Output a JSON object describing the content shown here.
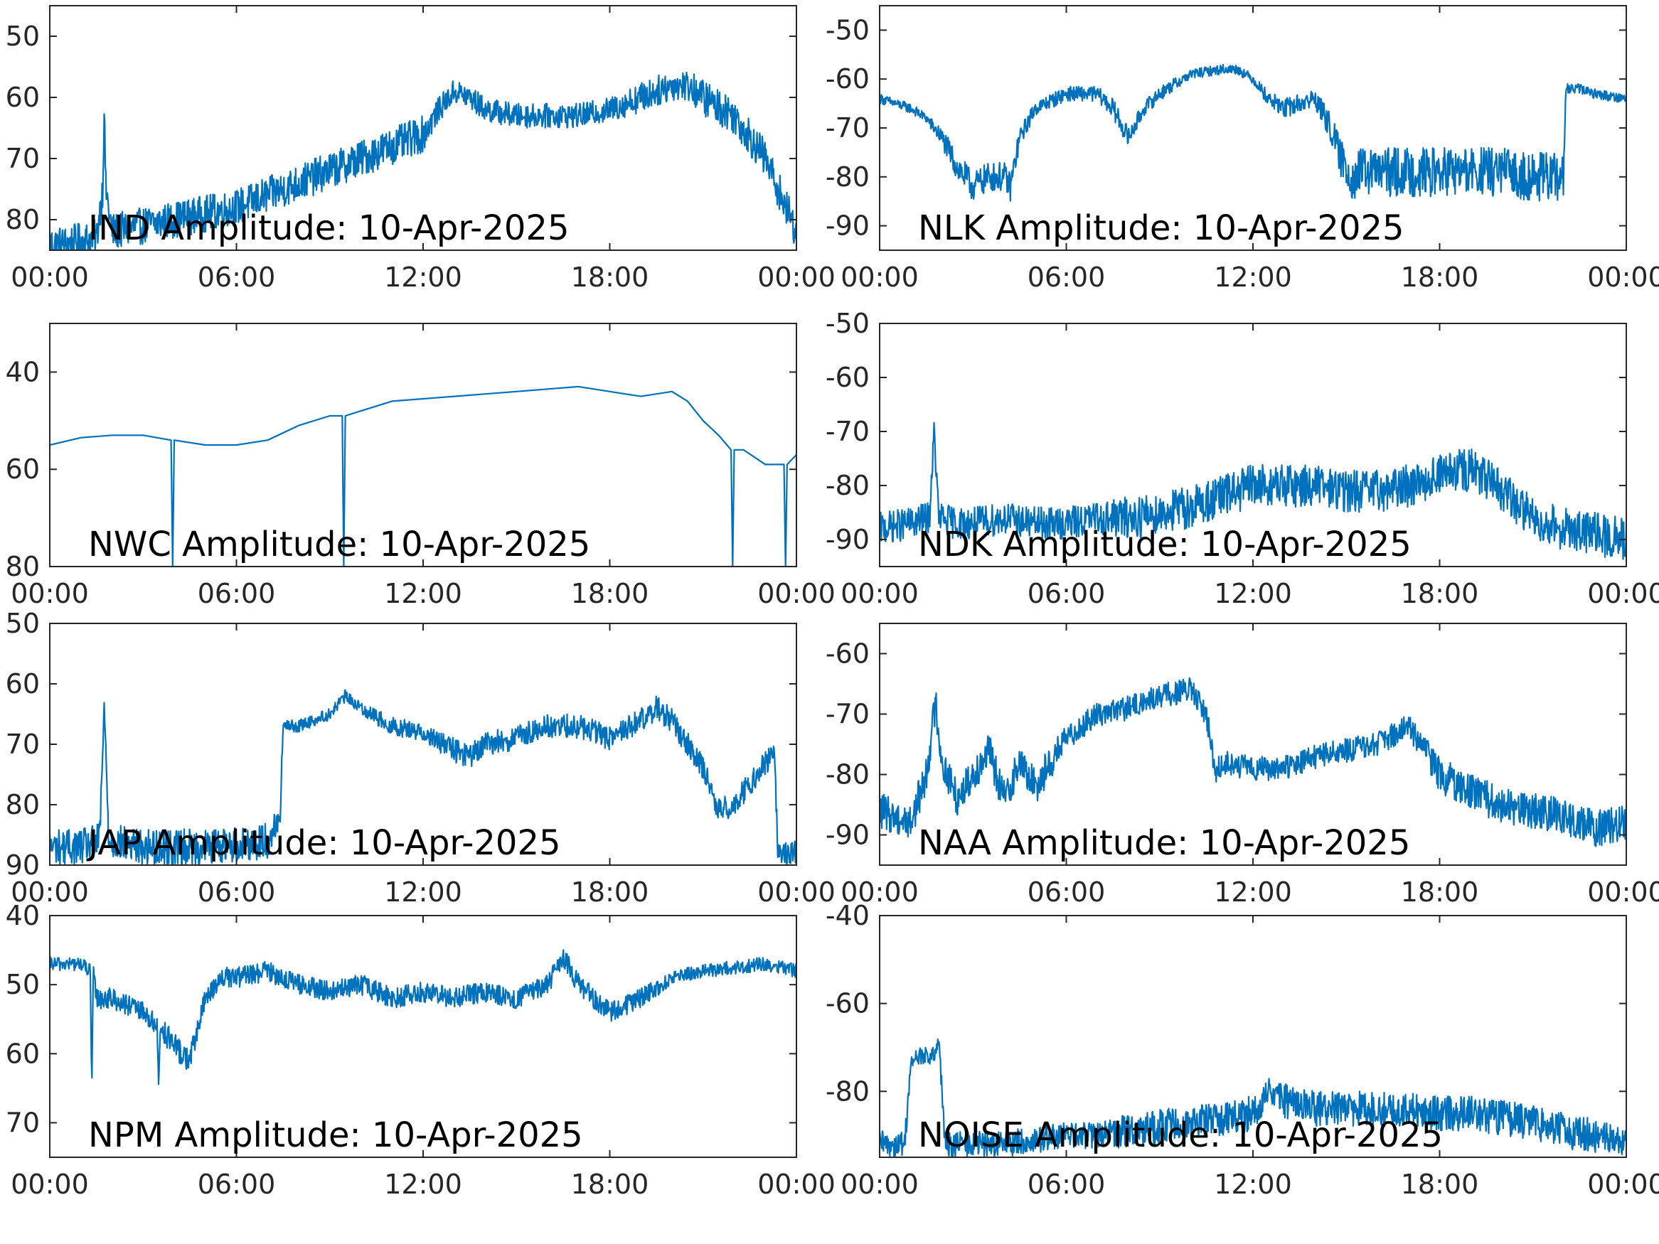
{
  "figure": {
    "line_color": "#0072BD",
    "axis_color": "#262626",
    "background": "#ffffff"
  },
  "chart_data": [
    {
      "type": "line",
      "title": "IND Amplitude: 10-Apr-2025",
      "xlabel": "",
      "ylabel": "",
      "xlim": [
        0,
        24
      ],
      "ylim": [
        -85,
        -45
      ],
      "y_ticks": [
        -50,
        -60,
        -70,
        -80
      ],
      "y_tick_labels": [
        "50",
        "60",
        "70",
        "80"
      ],
      "x_ticks": [
        0,
        6,
        12,
        18,
        24
      ],
      "x_tick_labels": [
        "00:00",
        "06:00",
        "12:00",
        "18:00",
        "00:00"
      ],
      "grid": false,
      "legend": "none",
      "series": [
        {
          "x": [
            0,
            0.5,
            1,
            1.5,
            1.7,
            1.75,
            1.8,
            2,
            3,
            4,
            5,
            6,
            7,
            8,
            9,
            10,
            11,
            12,
            12.5,
            13,
            13.5,
            14,
            15,
            16,
            17,
            18,
            19,
            20,
            20.5,
            21,
            22,
            23,
            24
          ],
          "y": [
            -84,
            -84,
            -83.5,
            -83,
            -75,
            -62,
            -75,
            -82,
            -81,
            -80,
            -79,
            -78,
            -76,
            -74,
            -72,
            -70,
            -68,
            -66,
            -62,
            -59,
            -60,
            -62,
            -63,
            -63,
            -63,
            -62,
            -60,
            -58,
            -58,
            -60,
            -63,
            -70,
            -82
          ],
          "noise": [
            3,
            3,
            3,
            3,
            3,
            2,
            3,
            3,
            3,
            3,
            3,
            3,
            3,
            3,
            3,
            3,
            3,
            3,
            2,
            2,
            2,
            2,
            2,
            2,
            2,
            2,
            2.5,
            2.5,
            2.5,
            3,
            3,
            3,
            3
          ]
        }
      ]
    },
    {
      "type": "line",
      "title": "NLK Amplitude: 10-Apr-2025",
      "xlabel": "",
      "ylabel": "",
      "xlim": [
        0,
        24
      ],
      "ylim": [
        -95,
        -45
      ],
      "y_ticks": [
        -50,
        -60,
        -70,
        -80,
        -90
      ],
      "y_tick_labels": [
        "-50",
        "-60",
        "-70",
        "-80",
        "-90"
      ],
      "x_ticks": [
        0,
        6,
        12,
        18,
        24
      ],
      "x_tick_labels": [
        "00:00",
        "06:00",
        "12:00",
        "18:00",
        "00:00"
      ],
      "grid": false,
      "legend": "none",
      "series": [
        {
          "x": [
            0,
            1,
            1.5,
            2,
            2.5,
            3,
            3.5,
            4,
            4.2,
            4.5,
            5,
            6,
            7,
            7.5,
            8,
            8.5,
            9,
            10,
            11,
            11.5,
            12,
            12.5,
            13,
            14,
            14.5,
            14.8,
            15.2,
            15.5,
            16,
            17,
            18,
            19,
            20,
            21,
            22,
            22.05,
            22.5,
            23,
            24
          ],
          "y": [
            -64,
            -66,
            -68,
            -72,
            -78,
            -82,
            -80,
            -80,
            -82,
            -72,
            -66,
            -63,
            -63,
            -66,
            -72,
            -66,
            -63,
            -59,
            -58,
            -58,
            -60,
            -64,
            -66,
            -64,
            -70,
            -76,
            -80,
            -79,
            -79,
            -79,
            -79,
            -79,
            -79,
            -80,
            -80,
            -62,
            -62,
            -63,
            -64
          ],
          "noise": [
            1,
            1,
            1,
            2,
            3,
            3,
            3,
            3,
            3,
            2,
            1.5,
            1.5,
            1.5,
            2,
            2,
            1.5,
            1.5,
            1,
            1,
            1,
            1,
            1.5,
            2,
            2,
            3,
            4,
            5,
            5,
            5,
            5,
            5,
            5,
            5,
            5,
            5,
            1,
            1,
            1,
            1
          ]
        }
      ]
    },
    {
      "type": "line",
      "title": "NWC Amplitude: 10-Apr-2025",
      "xlabel": "",
      "ylabel": "",
      "xlim": [
        0,
        24
      ],
      "ylim": [
        -80,
        -30
      ],
      "y_ticks": [
        -40,
        -60,
        -80
      ],
      "y_tick_labels": [
        "40",
        "60",
        "80"
      ],
      "x_ticks": [
        0,
        6,
        12,
        18,
        24
      ],
      "x_tick_labels": [
        "00:00",
        "06:00",
        "12:00",
        "18:00",
        "00:00"
      ],
      "grid": false,
      "legend": "none",
      "series": [
        {
          "x": [
            0,
            1,
            2,
            3,
            3.9,
            3.95,
            4,
            5,
            6,
            7,
            8,
            9,
            9.4,
            9.45,
            9.5,
            10,
            11,
            12,
            13,
            14,
            15,
            16,
            17,
            18,
            19,
            20,
            20.5,
            21,
            21.5,
            21.9,
            21.95,
            22,
            22.3,
            23,
            23.6,
            23.65,
            23.7,
            24
          ],
          "y": [
            -55,
            -53.5,
            -53,
            -53,
            -54,
            -80,
            -54,
            -55,
            -55,
            -54,
            -51,
            -49,
            -49,
            -80,
            -49,
            -48,
            -46,
            -45.5,
            -45,
            -44.5,
            -44,
            -43.5,
            -43,
            -44,
            -45,
            -44,
            -46,
            -50,
            -53,
            -56,
            -80,
            -56,
            -56,
            -59,
            -59,
            -80,
            -59,
            -57
          ]
        }
      ]
    },
    {
      "type": "line",
      "title": "NDK Amplitude: 10-Apr-2025",
      "xlabel": "",
      "ylabel": "",
      "xlim": [
        0,
        24
      ],
      "ylim": [
        -95,
        -50
      ],
      "y_ticks": [
        -50,
        -60,
        -70,
        -80,
        -90
      ],
      "y_tick_labels": [
        "-50",
        "-60",
        "-70",
        "-80",
        "-90"
      ],
      "x_ticks": [
        0,
        6,
        12,
        18,
        24
      ],
      "x_tick_labels": [
        "00:00",
        "06:00",
        "12:00",
        "18:00",
        "00:00"
      ],
      "grid": false,
      "legend": "none",
      "series": [
        {
          "x": [
            0,
            1,
            1.6,
            1.75,
            1.9,
            2.5,
            3,
            4,
            5,
            6,
            7,
            8,
            9,
            10,
            11,
            12,
            13,
            14,
            15,
            16,
            17,
            18,
            19,
            20,
            21,
            22,
            23,
            24
          ],
          "y": [
            -88,
            -87,
            -86,
            -70,
            -86,
            -87,
            -87,
            -86,
            -87,
            -87,
            -86,
            -86,
            -85,
            -84,
            -82,
            -80,
            -80,
            -80,
            -81,
            -81,
            -80,
            -78,
            -77,
            -81,
            -86,
            -88,
            -89,
            -90
          ],
          "noise": [
            3,
            3,
            3,
            2,
            3,
            3,
            3,
            3,
            3,
            3,
            3,
            4,
            4,
            4,
            4,
            4,
            4,
            4,
            4,
            4,
            4,
            4,
            4,
            4,
            4,
            4,
            4,
            4
          ]
        }
      ]
    },
    {
      "type": "line",
      "title": "JAP Amplitude: 10-Apr-2025",
      "xlabel": "",
      "ylabel": "",
      "xlim": [
        0,
        24
      ],
      "ylim": [
        -90,
        -50
      ],
      "y_ticks": [
        -50,
        -60,
        -70,
        -80,
        -90
      ],
      "y_tick_labels": [
        "50",
        "60",
        "70",
        "80",
        "90"
      ],
      "x_ticks": [
        0,
        6,
        12,
        18,
        24
      ],
      "x_tick_labels": [
        "00:00",
        "06:00",
        "12:00",
        "18:00",
        "00:00"
      ],
      "grid": false,
      "legend": "none",
      "series": [
        {
          "x": [
            0,
            1,
            1.6,
            1.75,
            1.9,
            3,
            5,
            7,
            7.4,
            7.5,
            8,
            9,
            9.5,
            10,
            11,
            12,
            13,
            13.5,
            14,
            15,
            16,
            17,
            18,
            19,
            19.5,
            20,
            20.5,
            21,
            21.5,
            22,
            23,
            23.3,
            23.4,
            24
          ],
          "y": [
            -87,
            -87,
            -86,
            -64,
            -86,
            -87,
            -87,
            -86,
            -82,
            -67,
            -67,
            -65,
            -62,
            -64,
            -67,
            -68,
            -71,
            -72,
            -70,
            -69,
            -67,
            -67,
            -69,
            -66,
            -64,
            -66,
            -70,
            -74,
            -81,
            -80,
            -73,
            -72,
            -88,
            -88
          ],
          "noise": [
            3,
            3,
            3,
            2,
            3,
            3,
            3,
            3,
            2,
            1,
            1,
            1,
            1,
            1,
            1.5,
            1.5,
            2,
            2,
            2,
            2,
            2,
            2,
            2,
            2,
            2,
            2,
            2,
            2,
            2,
            2,
            2,
            2,
            2,
            2
          ]
        }
      ]
    },
    {
      "type": "line",
      "title": "NAA Amplitude: 10-Apr-2025",
      "xlabel": "",
      "ylabel": "",
      "xlim": [
        0,
        24
      ],
      "ylim": [
        -95,
        -55
      ],
      "y_ticks": [
        -60,
        -70,
        -80,
        -90
      ],
      "y_tick_labels": [
        "-60",
        "-70",
        "-80",
        "-90"
      ],
      "x_ticks": [
        0,
        6,
        12,
        18,
        24
      ],
      "x_tick_labels": [
        "00:00",
        "06:00",
        "12:00",
        "18:00",
        "00:00"
      ],
      "grid": false,
      "legend": "none",
      "series": [
        {
          "x": [
            0,
            1,
            1.5,
            1.8,
            2,
            2.5,
            3,
            3.5,
            4,
            4.5,
            5,
            5.5,
            6,
            7,
            8,
            9,
            10,
            10.5,
            10.8,
            11,
            12,
            13,
            14,
            15,
            16,
            17,
            18,
            19,
            20,
            21,
            22,
            23,
            24
          ],
          "y": [
            -86,
            -88,
            -80,
            -68,
            -78,
            -84,
            -80,
            -76,
            -84,
            -78,
            -82,
            -78,
            -74,
            -70,
            -69,
            -67,
            -66,
            -70,
            -80,
            -78,
            -79,
            -79,
            -77,
            -76,
            -75,
            -72,
            -80,
            -83,
            -85,
            -86,
            -87,
            -89,
            -88
          ],
          "noise": [
            3,
            3,
            3,
            3,
            3,
            3,
            3,
            3,
            3,
            3,
            3,
            3,
            2,
            2,
            2,
            2,
            2,
            2,
            2,
            2,
            2,
            2,
            2,
            2,
            2,
            2,
            3,
            3,
            3,
            3,
            3,
            3,
            3
          ]
        }
      ]
    },
    {
      "type": "line",
      "title": "NPM Amplitude: 10-Apr-2025",
      "xlabel": "",
      "ylabel": "",
      "xlim": [
        0,
        24
      ],
      "ylim": [
        -75,
        -40
      ],
      "y_ticks": [
        -40,
        -50,
        -60,
        -70
      ],
      "y_tick_labels": [
        "40",
        "50",
        "60",
        "70"
      ],
      "x_ticks": [
        0,
        6,
        12,
        18,
        24
      ],
      "x_tick_labels": [
        "00:00",
        "06:00",
        "12:00",
        "18:00",
        "00:00"
      ],
      "grid": false,
      "legend": "none",
      "series": [
        {
          "x": [
            0,
            1,
            1.3,
            1.35,
            1.4,
            1.5,
            2,
            3,
            3.45,
            3.5,
            3.55,
            4,
            4.5,
            5,
            5.5,
            6,
            7,
            8,
            9,
            10,
            11,
            12,
            13,
            14,
            15,
            16,
            16.5,
            17,
            17.5,
            18,
            19,
            20,
            21,
            22,
            23,
            24
          ],
          "y": [
            -47,
            -47,
            -48,
            -65,
            -48,
            -52,
            -52,
            -54,
            -56,
            -65,
            -56,
            -59,
            -61,
            -52,
            -49,
            -49,
            -48,
            -50,
            -51,
            -50,
            -52,
            -51,
            -52,
            -51,
            -52,
            -50,
            -46,
            -50,
            -52,
            -54,
            -52,
            -49,
            -48,
            -47.5,
            -47,
            -48
          ],
          "noise": [
            1,
            1,
            1,
            0.5,
            1,
            1.5,
            1.5,
            1.5,
            1.5,
            0.5,
            1.5,
            2,
            2,
            1.5,
            1.5,
            1.5,
            1.5,
            1.5,
            1.5,
            1.5,
            1.5,
            1.5,
            1.5,
            1.5,
            1.5,
            1.5,
            1.5,
            1.5,
            1.5,
            1.5,
            1.5,
            1,
            1,
            1,
            1,
            1
          ]
        }
      ]
    },
    {
      "type": "line",
      "title": "NOISE Amplitude: 10-Apr-2025",
      "xlabel": "",
      "ylabel": "",
      "xlim": [
        0,
        24
      ],
      "ylim": [
        -95,
        -40
      ],
      "y_ticks": [
        -40,
        -60,
        -80
      ],
      "y_tick_labels": [
        "-40",
        "-60",
        "-80"
      ],
      "x_ticks": [
        0,
        6,
        12,
        18,
        24
      ],
      "x_tick_labels": [
        "00:00",
        "06:00",
        "12:00",
        "18:00",
        "00:00"
      ],
      "grid": false,
      "legend": "none",
      "series": [
        {
          "x": [
            0,
            0.8,
            1.0,
            1.2,
            1.5,
            1.8,
            1.9,
            2.1,
            3,
            4,
            5,
            6,
            7,
            8,
            9,
            10,
            11,
            12,
            12.5,
            13,
            14,
            15,
            16,
            17,
            18,
            19,
            20,
            21,
            22,
            23,
            24
          ],
          "y": [
            -92,
            -92,
            -74,
            -72,
            -72,
            -72,
            -68,
            -92,
            -92,
            -92,
            -91,
            -90,
            -90,
            -89,
            -88,
            -87,
            -86,
            -85,
            -80,
            -82,
            -84,
            -84,
            -84,
            -84,
            -85,
            -85,
            -86,
            -87,
            -89,
            -90,
            -92
          ],
          "noise": [
            3,
            3,
            2,
            2,
            2,
            2,
            2,
            3,
            3,
            3,
            3,
            3,
            3,
            4,
            4,
            4,
            4,
            4,
            3,
            4,
            4,
            4,
            4,
            4,
            4,
            4,
            4,
            4,
            4,
            4,
            3
          ]
        }
      ]
    }
  ]
}
